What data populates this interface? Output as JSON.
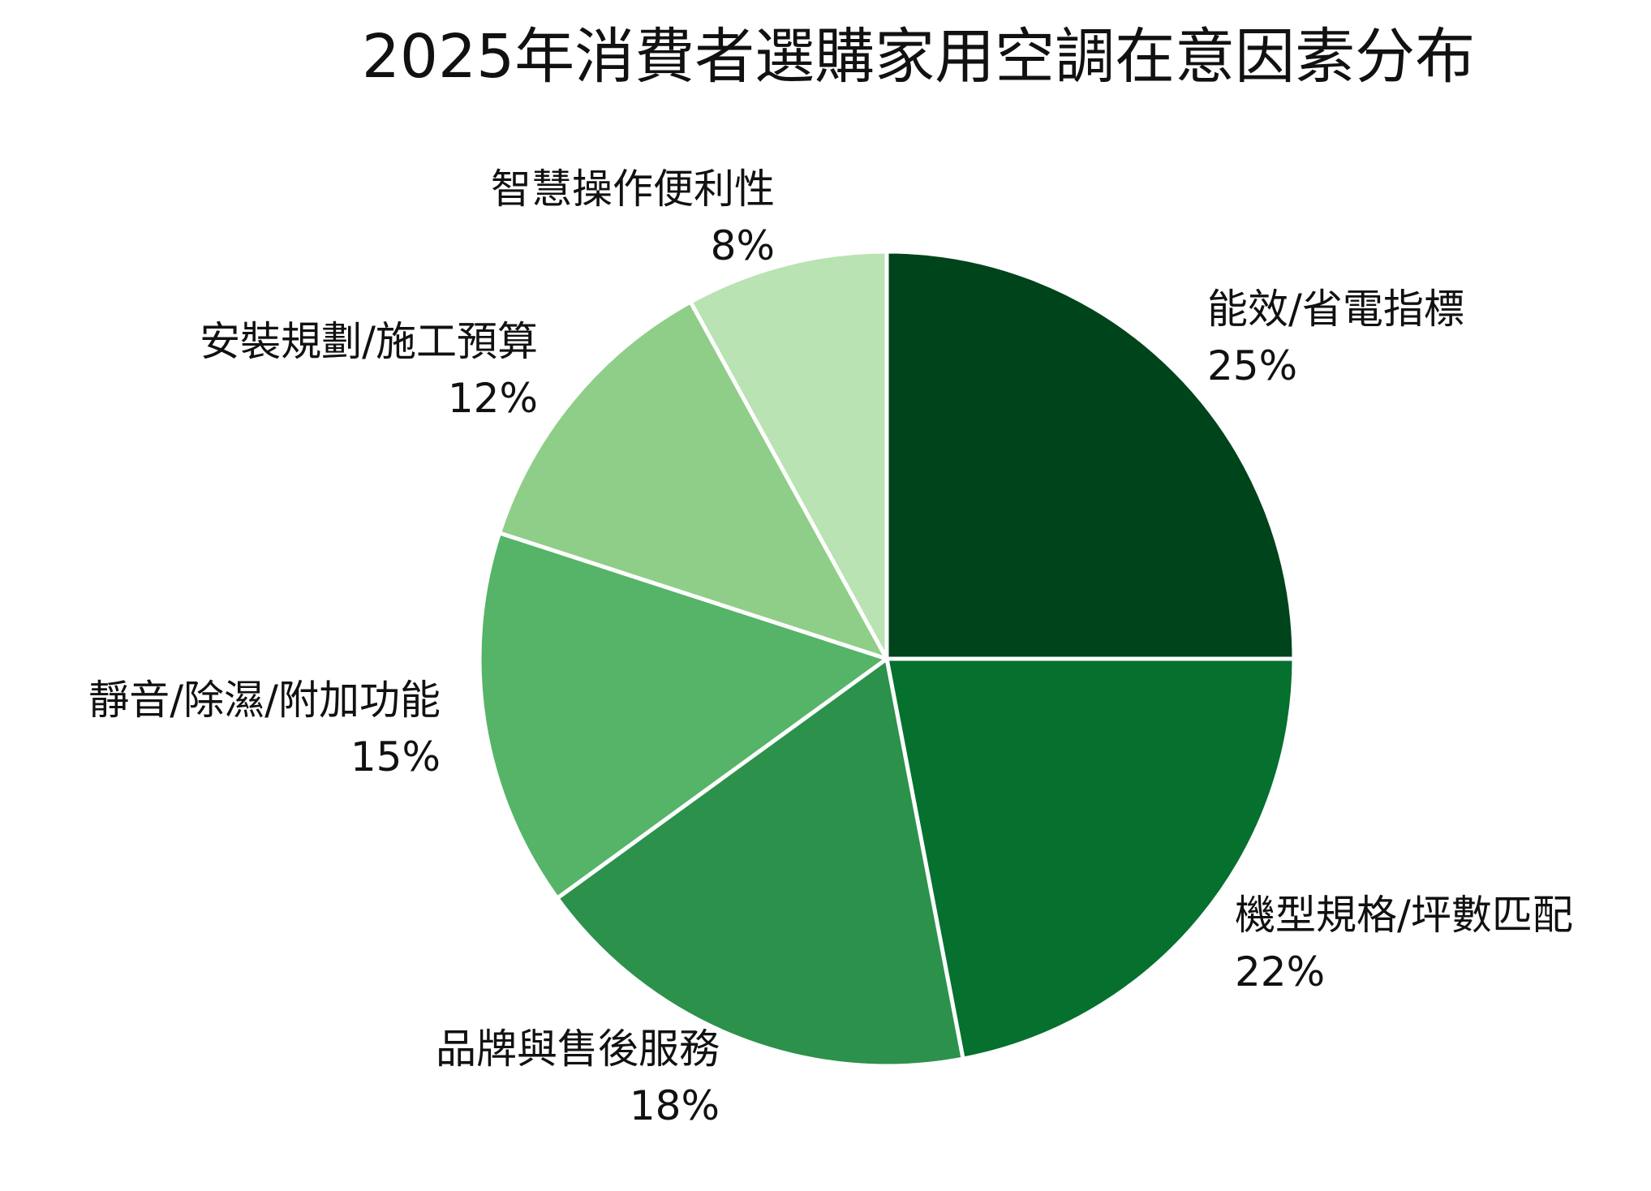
{
  "chart_data": {
    "type": "pie",
    "title": "2025年消費者選購家用空調在意因素分布",
    "start_angle_deg": 0,
    "direction": "clockwise",
    "legend": "none",
    "slices": [
      {
        "label": "能效/省電指標",
        "value": 25,
        "value_label": "25%",
        "color": "#00441b"
      },
      {
        "label": "機型規格/坪數匹配",
        "value": 22,
        "value_label": "22%",
        "color": "#06702f"
      },
      {
        "label": "品牌與售後服務",
        "value": 18,
        "value_label": "18%",
        "color": "#2c914b"
      },
      {
        "label": "靜音/除濕/附加功能",
        "value": 15,
        "value_label": "15%",
        "color": "#55b467"
      },
      {
        "label": "安裝規劃/施工預算",
        "value": 12,
        "value_label": "12%",
        "color": "#8fce88"
      },
      {
        "label": "智慧操作便利性",
        "value": 8,
        "value_label": "8%",
        "color": "#b9e3b2"
      }
    ]
  }
}
